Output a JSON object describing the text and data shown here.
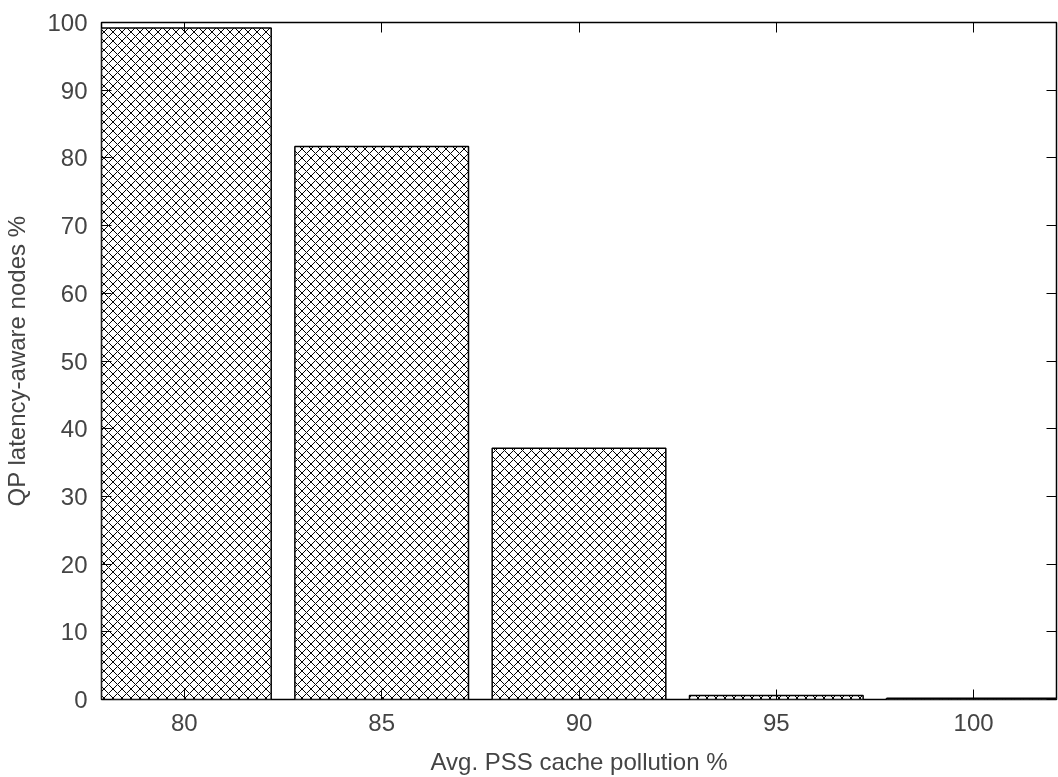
{
  "chart_data": {
    "type": "bar",
    "xlabel": "Avg. PSS cache pollution %",
    "ylabel": "QP latency-aware nodes %",
    "x": [
      80,
      85,
      90,
      95,
      100
    ],
    "series": [
      {
        "color": "#000000",
        "values": [
          99.2,
          81.7,
          37.1,
          0.6,
          0.2
        ]
      }
    ],
    "xlim": [
      77.9,
      102.1
    ],
    "xticks": [
      80,
      85,
      90,
      95,
      100
    ],
    "ylim": [
      0,
      100
    ],
    "yticks": [
      0,
      10,
      20,
      30,
      40,
      50,
      60,
      70,
      80,
      90,
      100
    ],
    "grid": false
  }
}
